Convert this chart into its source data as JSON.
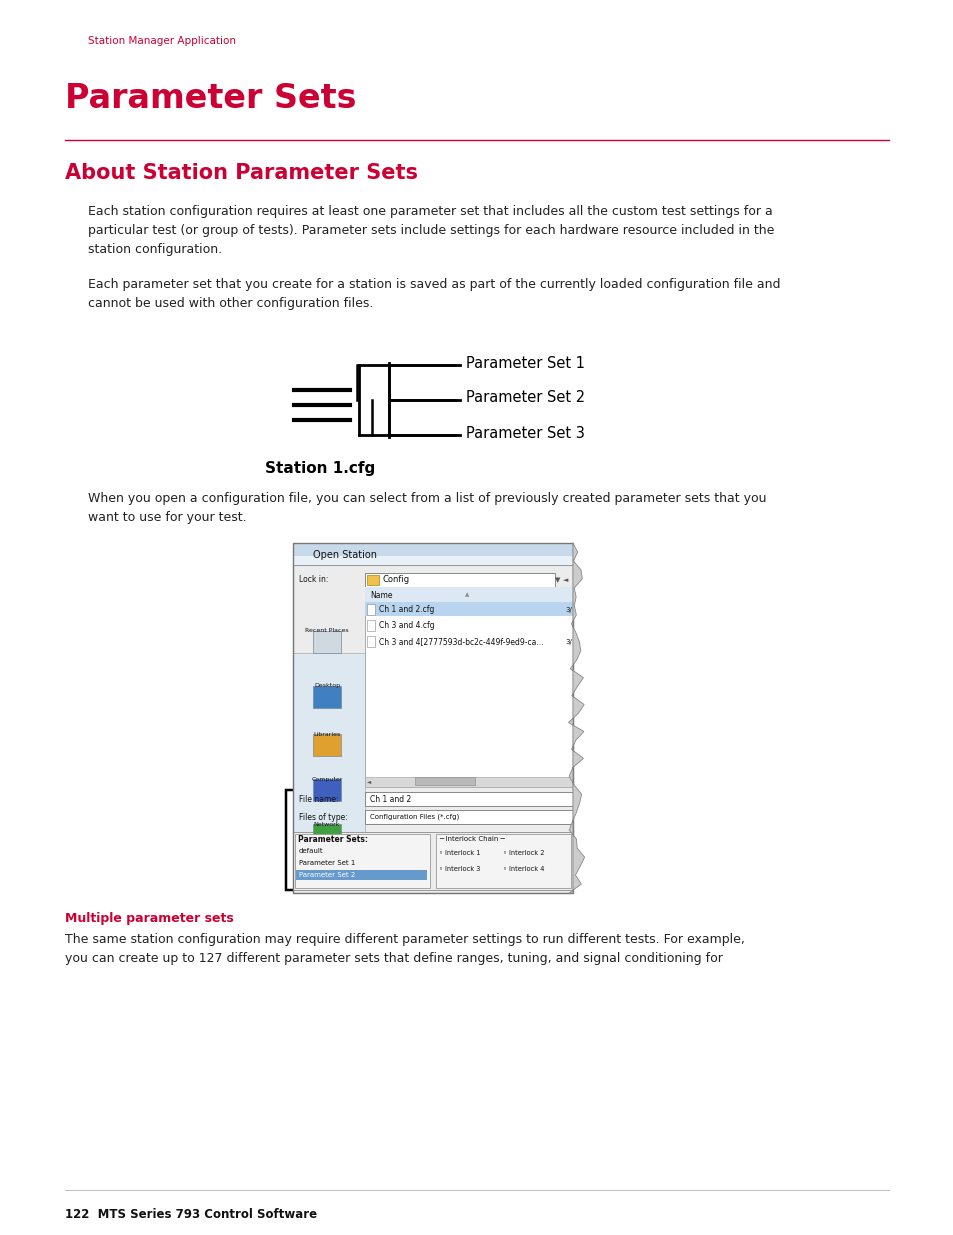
{
  "bg_color": "#ffffff",
  "header_text": "Station Manager Application",
  "header_color": "#cc0033",
  "header_fontsize": 7.5,
  "title": "Parameter Sets",
  "title_color": "#cc0033",
  "title_fontsize": 24,
  "divider_color": "#cc0033",
  "section_title": "About Station Parameter Sets",
  "section_title_color": "#cc0033",
  "section_title_fontsize": 15,
  "body_color": "#222222",
  "body_fontsize": 9,
  "para1": "Each station configuration requires at least one parameter set that includes all the custom test settings for a\nparticular test (or group of tests). Parameter sets include settings for each hardware resource included in the\nstation configuration.",
  "para2": "Each parameter set that you create for a station is saved as part of the currently loaded configuration file and\ncannot be used with other configuration files.",
  "diagram_station_label": "Station 1.cfg",
  "diagram_param_labels": [
    "Parameter Set 1",
    "Parameter Set 2",
    "Parameter Set 3"
  ],
  "para3": "When you open a configuration file, you can select from a list of previously created parameter sets that you\nwant to use for your test.",
  "sub_section_title": "Multiple parameter sets",
  "sub_section_color": "#cc0033",
  "sub_section_fontsize": 9,
  "para4": "The same station configuration may require different parameter settings to run different tests. For example,\nyou can create up to 127 different parameter sets that define ranges, tuning, and signal conditioning for",
  "footer_text": "122  MTS Series 793 Control Software",
  "footer_fontsize": 8.5
}
